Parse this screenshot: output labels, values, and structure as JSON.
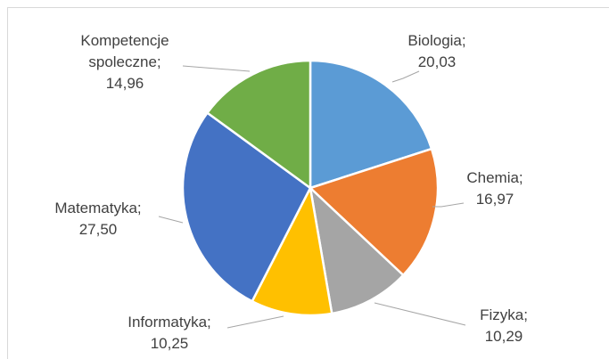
{
  "chart_data": {
    "type": "pie",
    "categories": [
      "Biologia;",
      "Chemia;",
      "Fizyka;",
      "Informatyka;",
      "Matematyka;",
      "Kompetencje spoleczne;"
    ],
    "values": [
      20.03,
      16.97,
      10.29,
      10.25,
      27.5,
      14.96
    ],
    "value_labels": [
      "20,03",
      "16,97",
      "10,29",
      "10,25",
      "27,50",
      "14,96"
    ],
    "colors": [
      "#5b9bd5",
      "#ed7d31",
      "#a5a5a5",
      "#ffc000",
      "#4472c4",
      "#70ad47"
    ]
  }
}
